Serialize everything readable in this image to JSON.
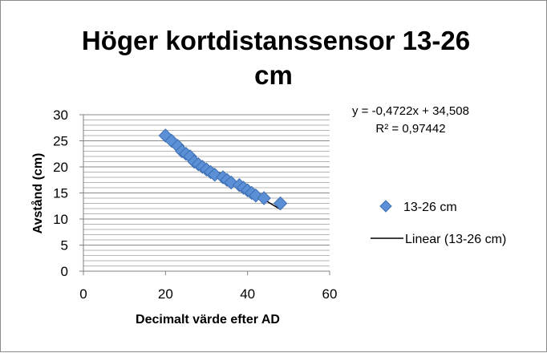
{
  "chart_data": {
    "type": "scatter",
    "title_lines": [
      "Höger kortdistanssensor 13-26",
      "cm"
    ],
    "xlabel": "Decimalt värde efter AD",
    "ylabel": "Avstånd (cm)",
    "xlim": [
      0,
      60
    ],
    "ylim": [
      0,
      30
    ],
    "x_ticks": [
      "0",
      "20",
      "40",
      "60"
    ],
    "y_ticks": [
      "0",
      "5",
      "10",
      "15",
      "20",
      "25",
      "30"
    ],
    "grid": "horizontal",
    "legend_position": "right",
    "series": [
      {
        "name": "13-26 cm",
        "marker": "diamond",
        "color": "#5b8fd6",
        "x": [
          20,
          21.5,
          23,
          24,
          25,
          26,
          27,
          28,
          29,
          30,
          31,
          32,
          34,
          35,
          36,
          38,
          39,
          40,
          41,
          42,
          44,
          48
        ],
        "y": [
          26,
          25,
          24,
          23,
          22.5,
          22,
          21,
          20.5,
          20,
          19.5,
          19,
          18.5,
          18,
          17.5,
          17,
          16.5,
          16,
          15.5,
          15,
          14.5,
          14,
          13
        ]
      }
    ],
    "trendline": {
      "name": "Linear (13-26 cm)",
      "type": "linear",
      "slope": -0.4722,
      "intercept": 34.508,
      "x_range": [
        20,
        48
      ],
      "equation": "y = -0,4722x + 34,508",
      "r2": "R² = 0,97442"
    }
  }
}
